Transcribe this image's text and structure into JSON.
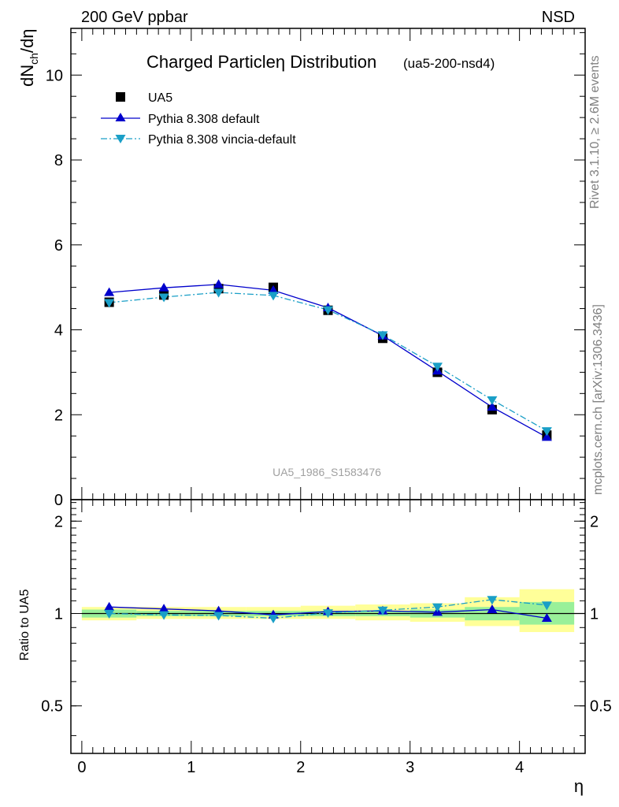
{
  "header": {
    "left": "200 GeV ppbar",
    "right": "NSD"
  },
  "side_labels": {
    "rivet": "Rivet 3.1.10, ≥ 2.6M events",
    "mcplots": "mcplots.cern.ch [arXiv:1306.3436]"
  },
  "chart_data": [
    {
      "type": "scatter",
      "title": "Charged Particleη Distribution",
      "subtitle": "(ua5-200-nsd4)",
      "ylabel": "dN_ch/dη",
      "xlabel": "",
      "watermark": "UA5_1986_S1583476",
      "xlim": [
        -0.1,
        4.6
      ],
      "ylim": [
        0,
        11.1
      ],
      "yticks": [
        0,
        2,
        4,
        6,
        8,
        10
      ],
      "ytick_labels": [
        "0",
        "2",
        "4",
        "6",
        "8",
        "10"
      ],
      "legend_position": "top-left",
      "series": [
        {
          "name": "UA5",
          "style": "markers",
          "marker": "square",
          "color": "#000000",
          "x": [
            0.25,
            0.75,
            1.25,
            1.75,
            2.25,
            2.75,
            3.25,
            3.75,
            4.25
          ],
          "y": [
            4.65,
            4.82,
            4.97,
            5.0,
            4.46,
            3.8,
            3.0,
            2.12,
            1.52
          ]
        },
        {
          "name": "Pythia 8.308 default",
          "style": "solid",
          "marker": "triangle-up",
          "color": "#0000cc",
          "x": [
            0.25,
            0.75,
            1.25,
            1.75,
            2.25,
            2.75,
            3.25,
            3.75,
            4.25
          ],
          "y": [
            4.88,
            4.99,
            5.07,
            4.93,
            4.52,
            3.86,
            3.03,
            2.18,
            1.47
          ]
        },
        {
          "name": "Pythia 8.308 vincia-default",
          "style": "dashdot",
          "marker": "triangle-down",
          "color": "#1a9fc7",
          "x": [
            0.25,
            0.75,
            1.25,
            1.75,
            2.25,
            2.75,
            3.25,
            3.75,
            4.25
          ],
          "y": [
            4.64,
            4.77,
            4.88,
            4.81,
            4.47,
            3.88,
            3.14,
            2.35,
            1.62
          ]
        }
      ]
    },
    {
      "type": "line",
      "ylabel": "Ratio to UA5",
      "xlabel": "η",
      "xlim": [
        -0.1,
        4.6
      ],
      "ylim": [
        0.35,
        2.35
      ],
      "xticks": [
        0,
        1,
        2,
        3,
        4
      ],
      "xtick_labels": [
        "0",
        "1",
        "2",
        "3",
        "4"
      ],
      "yticks": [
        0.5,
        1,
        2
      ],
      "ytick_labels": [
        "0.5",
        "1",
        "2"
      ],
      "bands": {
        "x_edges": [
          [
            0.0,
            0.5
          ],
          [
            0.5,
            1.0
          ],
          [
            1.0,
            1.5
          ],
          [
            1.5,
            2.0
          ],
          [
            2.0,
            2.5
          ],
          [
            2.5,
            3.0
          ],
          [
            3.0,
            3.5
          ],
          [
            3.5,
            4.0
          ],
          [
            4.0,
            4.5
          ]
        ],
        "stat": [
          [
            0.97,
            1.03
          ],
          [
            0.98,
            1.02
          ],
          [
            0.98,
            1.02
          ],
          [
            0.98,
            1.02
          ],
          [
            0.98,
            1.02
          ],
          [
            0.98,
            1.02
          ],
          [
            0.97,
            1.03
          ],
          [
            0.95,
            1.05
          ],
          [
            0.92,
            1.09
          ]
        ],
        "total": [
          [
            0.95,
            1.05
          ],
          [
            0.96,
            1.05
          ],
          [
            0.96,
            1.05
          ],
          [
            0.96,
            1.05
          ],
          [
            0.96,
            1.06
          ],
          [
            0.95,
            1.07
          ],
          [
            0.94,
            1.08
          ],
          [
            0.91,
            1.13
          ],
          [
            0.87,
            1.2
          ]
        ],
        "stat_color": "#99f099",
        "total_color": "#ffff99"
      },
      "series": [
        {
          "name": "Pythia 8.308 default",
          "style": "solid",
          "marker": "triangle-up",
          "color": "#0000cc",
          "x": [
            0.25,
            0.75,
            1.25,
            1.75,
            2.25,
            2.75,
            3.25,
            3.75,
            4.25
          ],
          "y": [
            1.05,
            1.035,
            1.02,
            0.99,
            1.015,
            1.02,
            1.01,
            1.03,
            0.965
          ]
        },
        {
          "name": "Pythia 8.308 vincia-default",
          "style": "dashdot",
          "marker": "triangle-down",
          "color": "#1a9fc7",
          "x": [
            0.25,
            0.75,
            1.25,
            1.75,
            2.25,
            2.75,
            3.25,
            3.75,
            4.25
          ],
          "y": [
            1.0,
            0.99,
            0.985,
            0.965,
            1.005,
            1.025,
            1.05,
            1.11,
            1.065
          ]
        }
      ]
    }
  ]
}
